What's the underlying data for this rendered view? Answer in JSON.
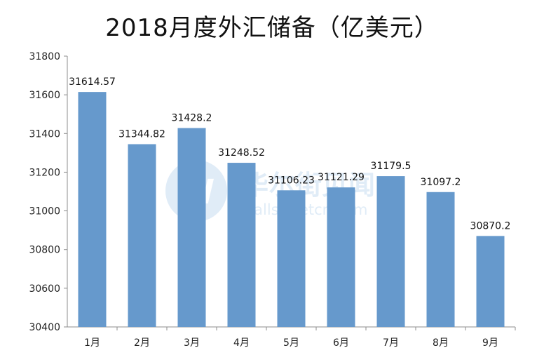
{
  "chart_data": {
    "type": "bar",
    "title": "2018月度外汇储备（亿美元）",
    "xlabel": "",
    "ylabel": "",
    "categories": [
      "1月",
      "2月",
      "3月",
      "4月",
      "5月",
      "6月",
      "7月",
      "8月",
      "9月"
    ],
    "values": [
      31614.57,
      31344.82,
      31428.2,
      31248.52,
      31106.23,
      31121.29,
      31179.5,
      31097.2,
      30870.2
    ],
    "value_labels": [
      "31614.57",
      "31344.82",
      "31428.2",
      "31248.52",
      "31106.23",
      "31121.29",
      "31179.5",
      "31097.2",
      "30870.2"
    ],
    "ylim": [
      30400,
      31800
    ],
    "yticks": [
      "30400",
      "30600",
      "30800",
      "31000",
      "31200",
      "31400",
      "31600",
      "31800"
    ],
    "grid": false,
    "bar_color": "#6699CC"
  },
  "watermark": {
    "text": "华尔街见闻",
    "subtext": "wallstreetcn.com",
    "color": "#5B9BD5"
  }
}
